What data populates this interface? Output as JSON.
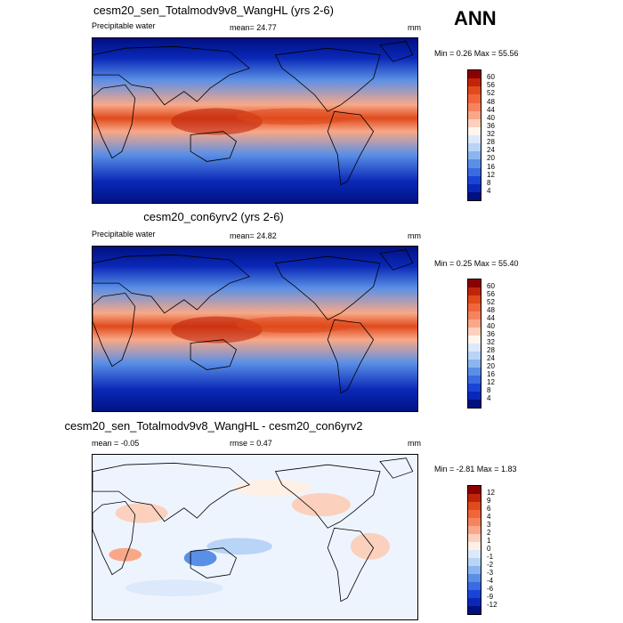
{
  "header": {
    "label": "ANN"
  },
  "panels": [
    {
      "title": "cesm20_sen_Totalmodv9v8_WangHL (yrs 2-6)",
      "variable": "Precipitable water",
      "stat": "mean=  24.77",
      "units": "mm",
      "minmax": "Min =   0.26 Max =  55.56",
      "colorbar": {
        "labels": [
          "60",
          "56",
          "52",
          "48",
          "44",
          "40",
          "36",
          "32",
          "28",
          "24",
          "20",
          "16",
          "12",
          "8",
          "4"
        ],
        "colors": [
          "#8b0000",
          "#c0240a",
          "#e04a1c",
          "#f0663a",
          "#f5845e",
          "#f8a888",
          "#fbd0bd",
          "#fff6f0",
          "#dbe9fb",
          "#b8d4f6",
          "#8ab5ee",
          "#5a8fe6",
          "#3a6be0",
          "#1a44d6",
          "#0a28b8",
          "#001080"
        ]
      }
    },
    {
      "title": "cesm20_con6yrv2 (yrs 2-6)",
      "variable": "Precipitable water",
      "stat": "mean=  24.82",
      "units": "mm",
      "minmax": "Min =   0.25 Max =  55.40",
      "colorbar": {
        "labels": [
          "60",
          "56",
          "52",
          "48",
          "44",
          "40",
          "36",
          "32",
          "28",
          "24",
          "20",
          "16",
          "12",
          "8",
          "4"
        ],
        "colors": [
          "#8b0000",
          "#c0240a",
          "#e04a1c",
          "#f0663a",
          "#f5845e",
          "#f8a888",
          "#fbd0bd",
          "#fff6f0",
          "#dbe9fb",
          "#b8d4f6",
          "#8ab5ee",
          "#5a8fe6",
          "#3a6be0",
          "#1a44d6",
          "#0a28b8",
          "#001080"
        ]
      }
    },
    {
      "title": "cesm20_sen_Totalmodv9v8_WangHL - cesm20_con6yrv2",
      "stat_left": "mean =  -0.05",
      "stat": "rmse =   0.47",
      "units": "mm",
      "minmax": "Min =  -2.81 Max =   1.83",
      "colorbar": {
        "labels": [
          "12",
          "9",
          "6",
          "4",
          "3",
          "2",
          "1",
          "0",
          "-1",
          "-2",
          "-3",
          "-4",
          "-6",
          "-9",
          "-12"
        ],
        "colors": [
          "#8b0000",
          "#c0240a",
          "#e04a1c",
          "#f0663a",
          "#f5845e",
          "#f8a888",
          "#fbd0bd",
          "#fff0e6",
          "#dbe9fb",
          "#b8d4f6",
          "#8ab5ee",
          "#5a8fe6",
          "#3a6be0",
          "#1a44d6",
          "#0a28b8",
          "#001080"
        ]
      }
    }
  ],
  "chart_data": [
    {
      "type": "heatmap",
      "title": "cesm20_sen_Totalmodv9v8_WangHL (yrs 2-6)",
      "variable": "Precipitable water",
      "units": "mm",
      "mean": 24.77,
      "min": 0.26,
      "max": 55.56,
      "levels": [
        4,
        8,
        12,
        16,
        20,
        24,
        28,
        32,
        36,
        40,
        44,
        48,
        52,
        56,
        60
      ]
    },
    {
      "type": "heatmap",
      "title": "cesm20_con6yrv2 (yrs 2-6)",
      "variable": "Precipitable water",
      "units": "mm",
      "mean": 24.82,
      "min": 0.25,
      "max": 55.4,
      "levels": [
        4,
        8,
        12,
        16,
        20,
        24,
        28,
        32,
        36,
        40,
        44,
        48,
        52,
        56,
        60
      ]
    },
    {
      "type": "heatmap",
      "title": "cesm20_sen_Totalmodv9v8_WangHL - cesm20_con6yrv2",
      "units": "mm",
      "mean": -0.05,
      "rmse": 0.47,
      "min": -2.81,
      "max": 1.83,
      "levels": [
        -12,
        -9,
        -6,
        -4,
        -3,
        -2,
        -1,
        0,
        1,
        2,
        3,
        4,
        6,
        9,
        12
      ]
    }
  ]
}
